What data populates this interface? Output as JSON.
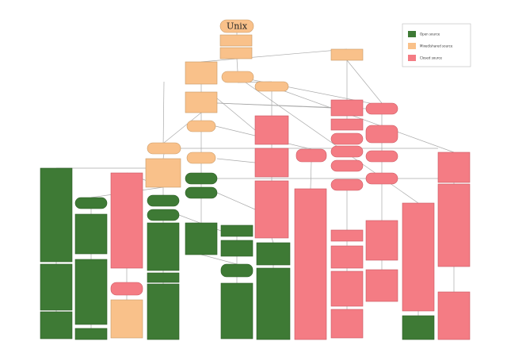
{
  "title": "Unix",
  "legend": [
    {
      "label": "Open source",
      "color": "#3e7a35"
    },
    {
      "label": "Mixed/shared source",
      "color": "#f9c18a"
    },
    {
      "label": "Closed source",
      "color": "#f47c84"
    }
  ]
}
